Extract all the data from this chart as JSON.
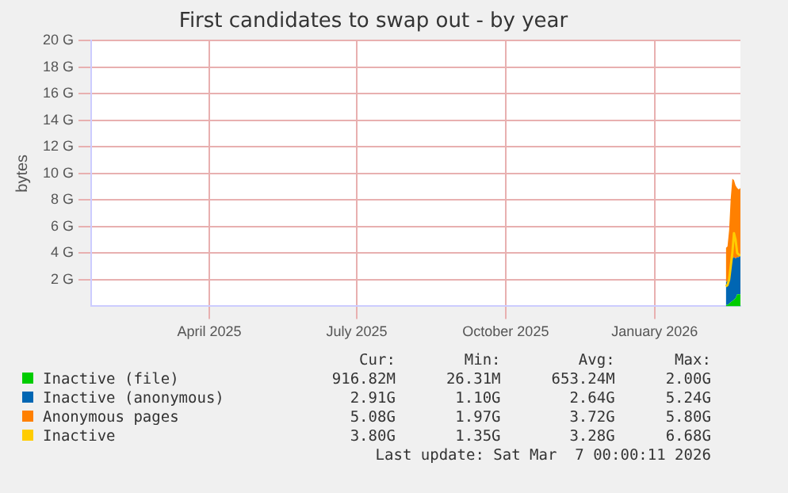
{
  "chart_data": {
    "type": "area",
    "title": "First candidates to swap out - by year",
    "ylabel": "bytes",
    "x": [
      "2026-02-14",
      "2026-02-15",
      "2026-02-16",
      "2026-02-17",
      "2026-02-18",
      "2026-02-19",
      "2026-02-20",
      "2026-02-21",
      "2026-02-22",
      "2026-02-23"
    ],
    "series": [
      {
        "name": "Inactive (file)",
        "color": "#00cc00",
        "values": [
          0.1,
          0.1,
          0.2,
          0.3,
          0.4,
          0.5,
          0.6,
          0.9,
          0.9,
          0.9
        ]
      },
      {
        "name": "Inactive (anonymous)",
        "color": "#0066b3",
        "values": [
          1.7,
          1.8,
          2.0,
          2.8,
          3.2,
          3.2,
          3.0,
          2.8,
          2.8,
          2.9
        ]
      },
      {
        "name": "Anonymous pages",
        "color": "#ff8000",
        "values": [
          2.6,
          2.6,
          3.5,
          5.0,
          6.0,
          5.8,
          5.5,
          5.2,
          5.1,
          5.1
        ]
      },
      {
        "name": "Inactive",
        "color": "#ffcc00",
        "type": "line",
        "values": [
          1.5,
          1.6,
          2.0,
          3.0,
          4.0,
          5.5,
          5.0,
          4.0,
          3.9,
          3.8
        ]
      }
    ],
    "stacked": true,
    "xlim": [
      "2025-01-18",
      "2026-02-23"
    ],
    "xticks": [
      {
        "value": "2025-04-01",
        "label": "April 2025"
      },
      {
        "value": "2025-07-01",
        "label": "July 2025"
      },
      {
        "value": "2025-10-01",
        "label": "October 2025"
      },
      {
        "value": "2026-01-01",
        "label": "January 2026"
      }
    ],
    "ylim": [
      0,
      20
    ],
    "yticks": [
      {
        "value": 2,
        "label": "2 G"
      },
      {
        "value": 4,
        "label": "4 G"
      },
      {
        "value": 6,
        "label": "6 G"
      },
      {
        "value": 8,
        "label": "8 G"
      },
      {
        "value": 10,
        "label": "10 G"
      },
      {
        "value": 12,
        "label": "12 G"
      },
      {
        "value": 14,
        "label": "14 G"
      },
      {
        "value": 16,
        "label": "16 G"
      },
      {
        "value": 18,
        "label": "18 G"
      },
      {
        "value": 20,
        "label": "20 G"
      }
    ],
    "grid": true,
    "legend": "bottom",
    "marker": "none",
    "annotations": [
      "Cur:",
      "Min:",
      "Avg:",
      "Max:",
      "916.82M",
      "26.31M",
      "653.24M",
      "2.00G",
      "2.91G",
      "1.10G",
      "2.64G",
      "5.24G",
      "5.08G",
      "1.97G",
      "3.72G",
      "5.80G",
      "3.80G",
      "1.35G",
      "3.28G",
      "6.68G",
      "Last update: Sat Mar  7 00:00:11 2026"
    ]
  }
}
